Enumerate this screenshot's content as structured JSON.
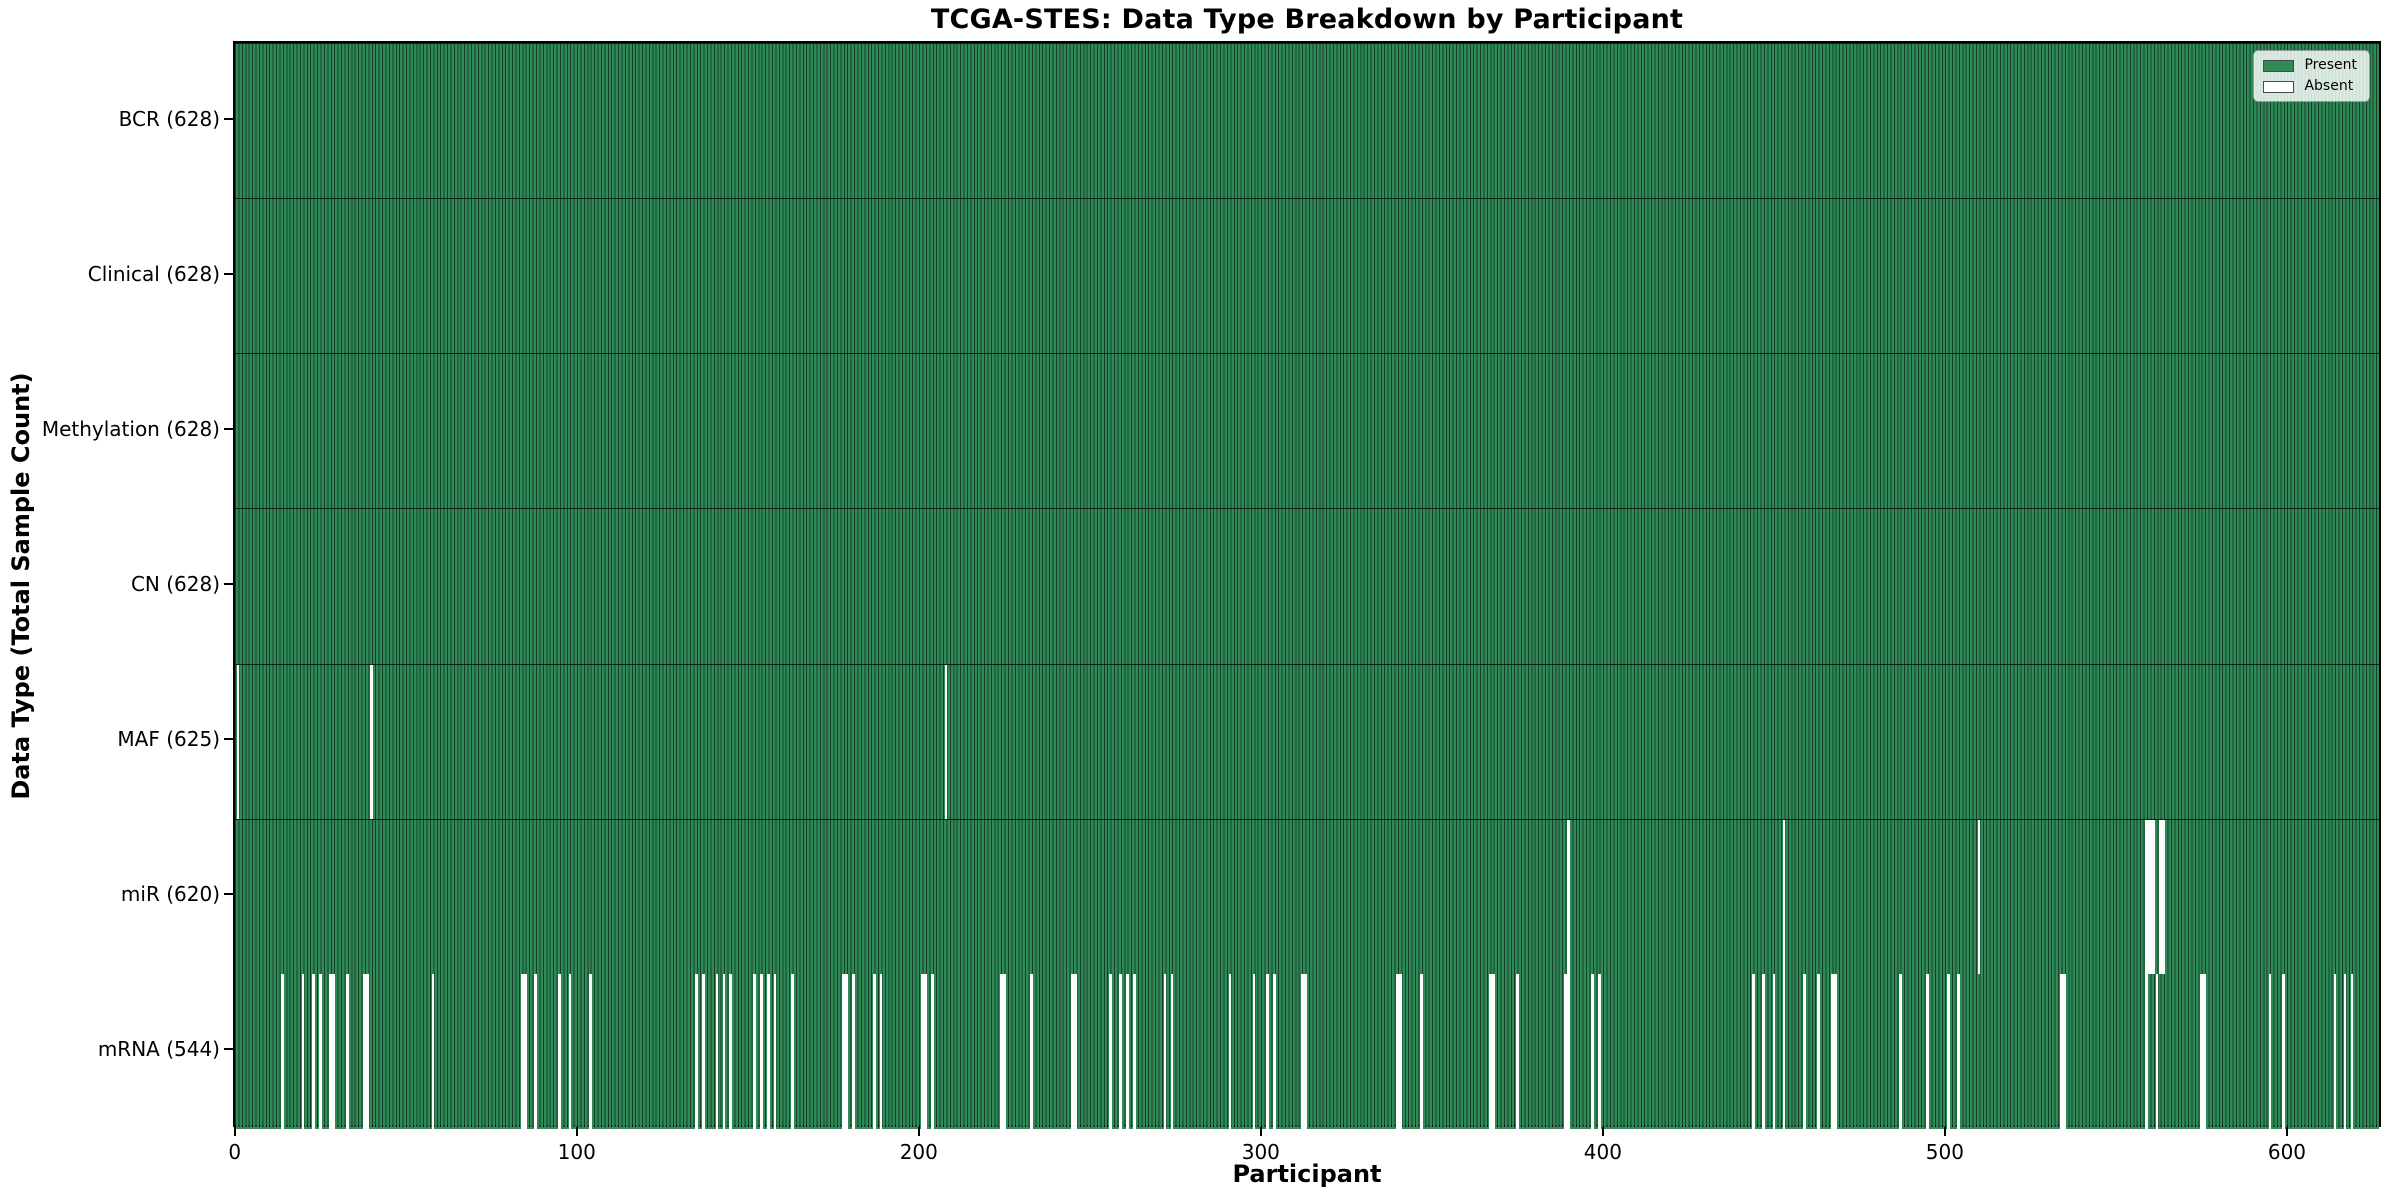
{
  "title": "TCGA-STES: Data Type Breakdown by Participant",
  "xlabel": "Participant",
  "ylabel": "Data Type (Total Sample Count)",
  "legend": {
    "present_label": "Present",
    "absent_label": "Absent"
  },
  "colors": {
    "present": "#2e8b57",
    "absent": "#fdfdfd",
    "bar_edge": "rgba(0,0,0,0.55)",
    "spine": "#000000"
  },
  "chart_data": {
    "type": "heatmap",
    "title": "TCGA-STES: Data Type Breakdown by Participant",
    "xlabel": "Participant",
    "ylabel": "Data Type (Total Sample Count)",
    "x_range": [
      0,
      628
    ],
    "n_participants": 628,
    "x_ticks": [
      0,
      100,
      200,
      300,
      400,
      500,
      600
    ],
    "x_tick_labels": [
      "0",
      "100",
      "200",
      "300",
      "400",
      "500",
      "600"
    ],
    "grid": false,
    "legend_position": "upper right",
    "legend_entries": [
      "Present",
      "Absent"
    ],
    "cell_values": {
      "present": 1,
      "absent": 0
    },
    "rows": [
      {
        "name": "BCR",
        "label": "BCR (628)",
        "present_count": 628,
        "absent_count": 0,
        "absent_participants": []
      },
      {
        "name": "Clinical",
        "label": "Clinical (628)",
        "present_count": 628,
        "absent_count": 0,
        "absent_participants": []
      },
      {
        "name": "Methylation",
        "label": "Methylation (628)",
        "present_count": 628,
        "absent_count": 0,
        "absent_participants": []
      },
      {
        "name": "CN",
        "label": "CN (628)",
        "present_count": 628,
        "absent_count": 0,
        "absent_participants": []
      },
      {
        "name": "MAF",
        "label": "MAF (625)",
        "present_count": 625,
        "absent_count": 3,
        "absent_participants": [
          1,
          40,
          208
        ]
      },
      {
        "name": "miR",
        "label": "miR (620)",
        "present_count": 620,
        "absent_count": 8,
        "absent_participants": [
          390,
          453,
          510,
          559,
          560,
          561,
          563,
          564
        ]
      },
      {
        "name": "mRNA",
        "label": "mRNA (544)",
        "present_count": 544,
        "absent_count": 84,
        "absent_participants": [
          14,
          20,
          23,
          25,
          28,
          29,
          33,
          38,
          39,
          58,
          84,
          85,
          88,
          95,
          98,
          104,
          135,
          137,
          141,
          143,
          145,
          152,
          154,
          156,
          158,
          163,
          178,
          179,
          181,
          187,
          189,
          201,
          202,
          204,
          224,
          225,
          233,
          245,
          246,
          256,
          259,
          261,
          263,
          272,
          274,
          291,
          298,
          302,
          304,
          312,
          313,
          340,
          341,
          347,
          367,
          368,
          375,
          389,
          390,
          397,
          399,
          444,
          447,
          450,
          453,
          459,
          463,
          467,
          468,
          487,
          495,
          501,
          504,
          534,
          535,
          559,
          562,
          575,
          576,
          595,
          599,
          614,
          617,
          619
        ]
      }
    ]
  }
}
